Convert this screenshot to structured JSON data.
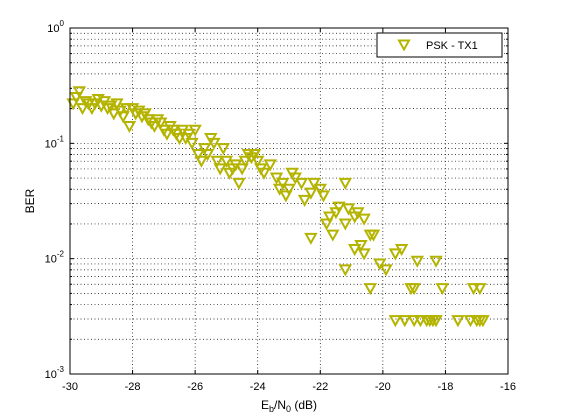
{
  "chart_data": {
    "type": "scatter",
    "xlabel": {
      "base": "E",
      "sub1": "b",
      "mid": "/N",
      "sub2": "0",
      "tail": " (dB)"
    },
    "ylabel": "BER",
    "xlim": [
      -30,
      -16
    ],
    "ylim": [
      0.001,
      1
    ],
    "y_scale": "log",
    "grid": true,
    "legend_position": "top-right",
    "x_ticks": [
      -30,
      -28,
      -26,
      -24,
      -22,
      -20,
      -18,
      -16
    ],
    "y_ticks": [
      {
        "value": 0.001,
        "base": "10",
        "exp": "-3"
      },
      {
        "value": 0.01,
        "base": "10",
        "exp": "-2"
      },
      {
        "value": 0.1,
        "base": "10",
        "exp": "-1"
      },
      {
        "value": 1,
        "base": "10",
        "exp": "0"
      }
    ],
    "marker": "triangle-down",
    "series": [
      {
        "name": "PSK - TX1",
        "color": "#b4b400",
        "points": [
          [
            -29.9,
            0.22
          ],
          [
            -29.8,
            0.25
          ],
          [
            -29.7,
            0.28
          ],
          [
            -29.6,
            0.2
          ],
          [
            -29.5,
            0.23
          ],
          [
            -29.4,
            0.22
          ],
          [
            -29.3,
            0.2
          ],
          [
            -29.2,
            0.22
          ],
          [
            -29.1,
            0.24
          ],
          [
            -29.0,
            0.21
          ],
          [
            -28.9,
            0.23
          ],
          [
            -28.8,
            0.2
          ],
          [
            -28.7,
            0.21
          ],
          [
            -28.6,
            0.18
          ],
          [
            -28.5,
            0.22
          ],
          [
            -28.4,
            0.19
          ],
          [
            -28.3,
            0.17
          ],
          [
            -28.2,
            0.2
          ],
          [
            -28.1,
            0.14
          ],
          [
            -28.0,
            0.2
          ],
          [
            -27.9,
            0.18
          ],
          [
            -27.8,
            0.19
          ],
          [
            -27.7,
            0.17
          ],
          [
            -27.6,
            0.18
          ],
          [
            -27.5,
            0.16
          ],
          [
            -27.4,
            0.15
          ],
          [
            -27.3,
            0.14
          ],
          [
            -27.2,
            0.16
          ],
          [
            -27.1,
            0.15
          ],
          [
            -27.0,
            0.13
          ],
          [
            -26.9,
            0.12
          ],
          [
            -26.8,
            0.14
          ],
          [
            -26.7,
            0.13
          ],
          [
            -26.6,
            0.12
          ],
          [
            -26.5,
            0.11
          ],
          [
            -26.4,
            0.13
          ],
          [
            -26.3,
            0.11
          ],
          [
            -26.2,
            0.12
          ],
          [
            -26.1,
            0.1
          ],
          [
            -26.0,
            0.13
          ],
          [
            -25.9,
            0.08
          ],
          [
            -25.8,
            0.07
          ],
          [
            -25.7,
            0.09
          ],
          [
            -25.6,
            0.08
          ],
          [
            -25.5,
            0.11
          ],
          [
            -25.4,
            0.1
          ],
          [
            -25.3,
            0.07
          ],
          [
            -25.2,
            0.06
          ],
          [
            -25.1,
            0.09
          ],
          [
            -25.0,
            0.07
          ],
          [
            -24.9,
            0.055
          ],
          [
            -24.8,
            0.06
          ],
          [
            -24.7,
            0.065
          ],
          [
            -24.6,
            0.045
          ],
          [
            -24.5,
            0.06
          ],
          [
            -24.4,
            0.07
          ],
          [
            -24.3,
            0.08
          ],
          [
            -24.2,
            0.075
          ],
          [
            -24.1,
            0.08
          ],
          [
            -24.0,
            0.07
          ],
          [
            -23.9,
            0.06
          ],
          [
            -23.8,
            0.055
          ],
          [
            -23.6,
            0.065
          ],
          [
            -23.4,
            0.05
          ],
          [
            -23.3,
            0.04
          ],
          [
            -23.2,
            0.045
          ],
          [
            -23.1,
            0.035
          ],
          [
            -23.0,
            0.04
          ],
          [
            -22.9,
            0.055
          ],
          [
            -22.8,
            0.05
          ],
          [
            -22.6,
            0.045
          ],
          [
            -22.5,
            0.032
          ],
          [
            -22.3,
            0.037
          ],
          [
            -22.2,
            0.045
          ],
          [
            -22.0,
            0.04
          ],
          [
            -21.9,
            0.035
          ],
          [
            -21.8,
            0.02
          ],
          [
            -21.7,
            0.023
          ],
          [
            -21.5,
            0.025
          ],
          [
            -21.4,
            0.028
          ],
          [
            -21.2,
            0.02
          ],
          [
            -21.1,
            0.027
          ],
          [
            -20.9,
            0.023
          ],
          [
            -20.8,
            0.025
          ],
          [
            -20.6,
            0.022
          ],
          [
            -21.2,
            0.045
          ],
          [
            -22.3,
            0.015
          ],
          [
            -21.6,
            0.016
          ],
          [
            -21.2,
            0.008
          ],
          [
            -20.9,
            0.012
          ],
          [
            -20.7,
            0.013
          ],
          [
            -20.6,
            0.011
          ],
          [
            -20.4,
            0.016
          ],
          [
            -20.3,
            0.016
          ],
          [
            -20.1,
            0.009
          ],
          [
            -19.9,
            0.008
          ],
          [
            -19.6,
            0.011
          ],
          [
            -19.4,
            0.012
          ],
          [
            -19.1,
            0.0055
          ],
          [
            -19.0,
            0.0055
          ],
          [
            -18.9,
            0.0095
          ],
          [
            -18.3,
            0.0095
          ],
          [
            -20.4,
            0.0055
          ],
          [
            -18.1,
            0.0055
          ],
          [
            -17.1,
            0.0055
          ],
          [
            -16.9,
            0.0055
          ],
          [
            -19.6,
            0.0029
          ],
          [
            -19.3,
            0.0029
          ],
          [
            -19.0,
            0.0029
          ],
          [
            -18.8,
            0.0029
          ],
          [
            -18.6,
            0.0029
          ],
          [
            -18.5,
            0.0029
          ],
          [
            -18.4,
            0.0029
          ],
          [
            -18.3,
            0.0029
          ],
          [
            -17.6,
            0.0029
          ],
          [
            -17.2,
            0.0029
          ],
          [
            -17.0,
            0.0029
          ],
          [
            -16.9,
            0.0029
          ],
          [
            -16.8,
            0.0029
          ]
        ]
      }
    ]
  }
}
